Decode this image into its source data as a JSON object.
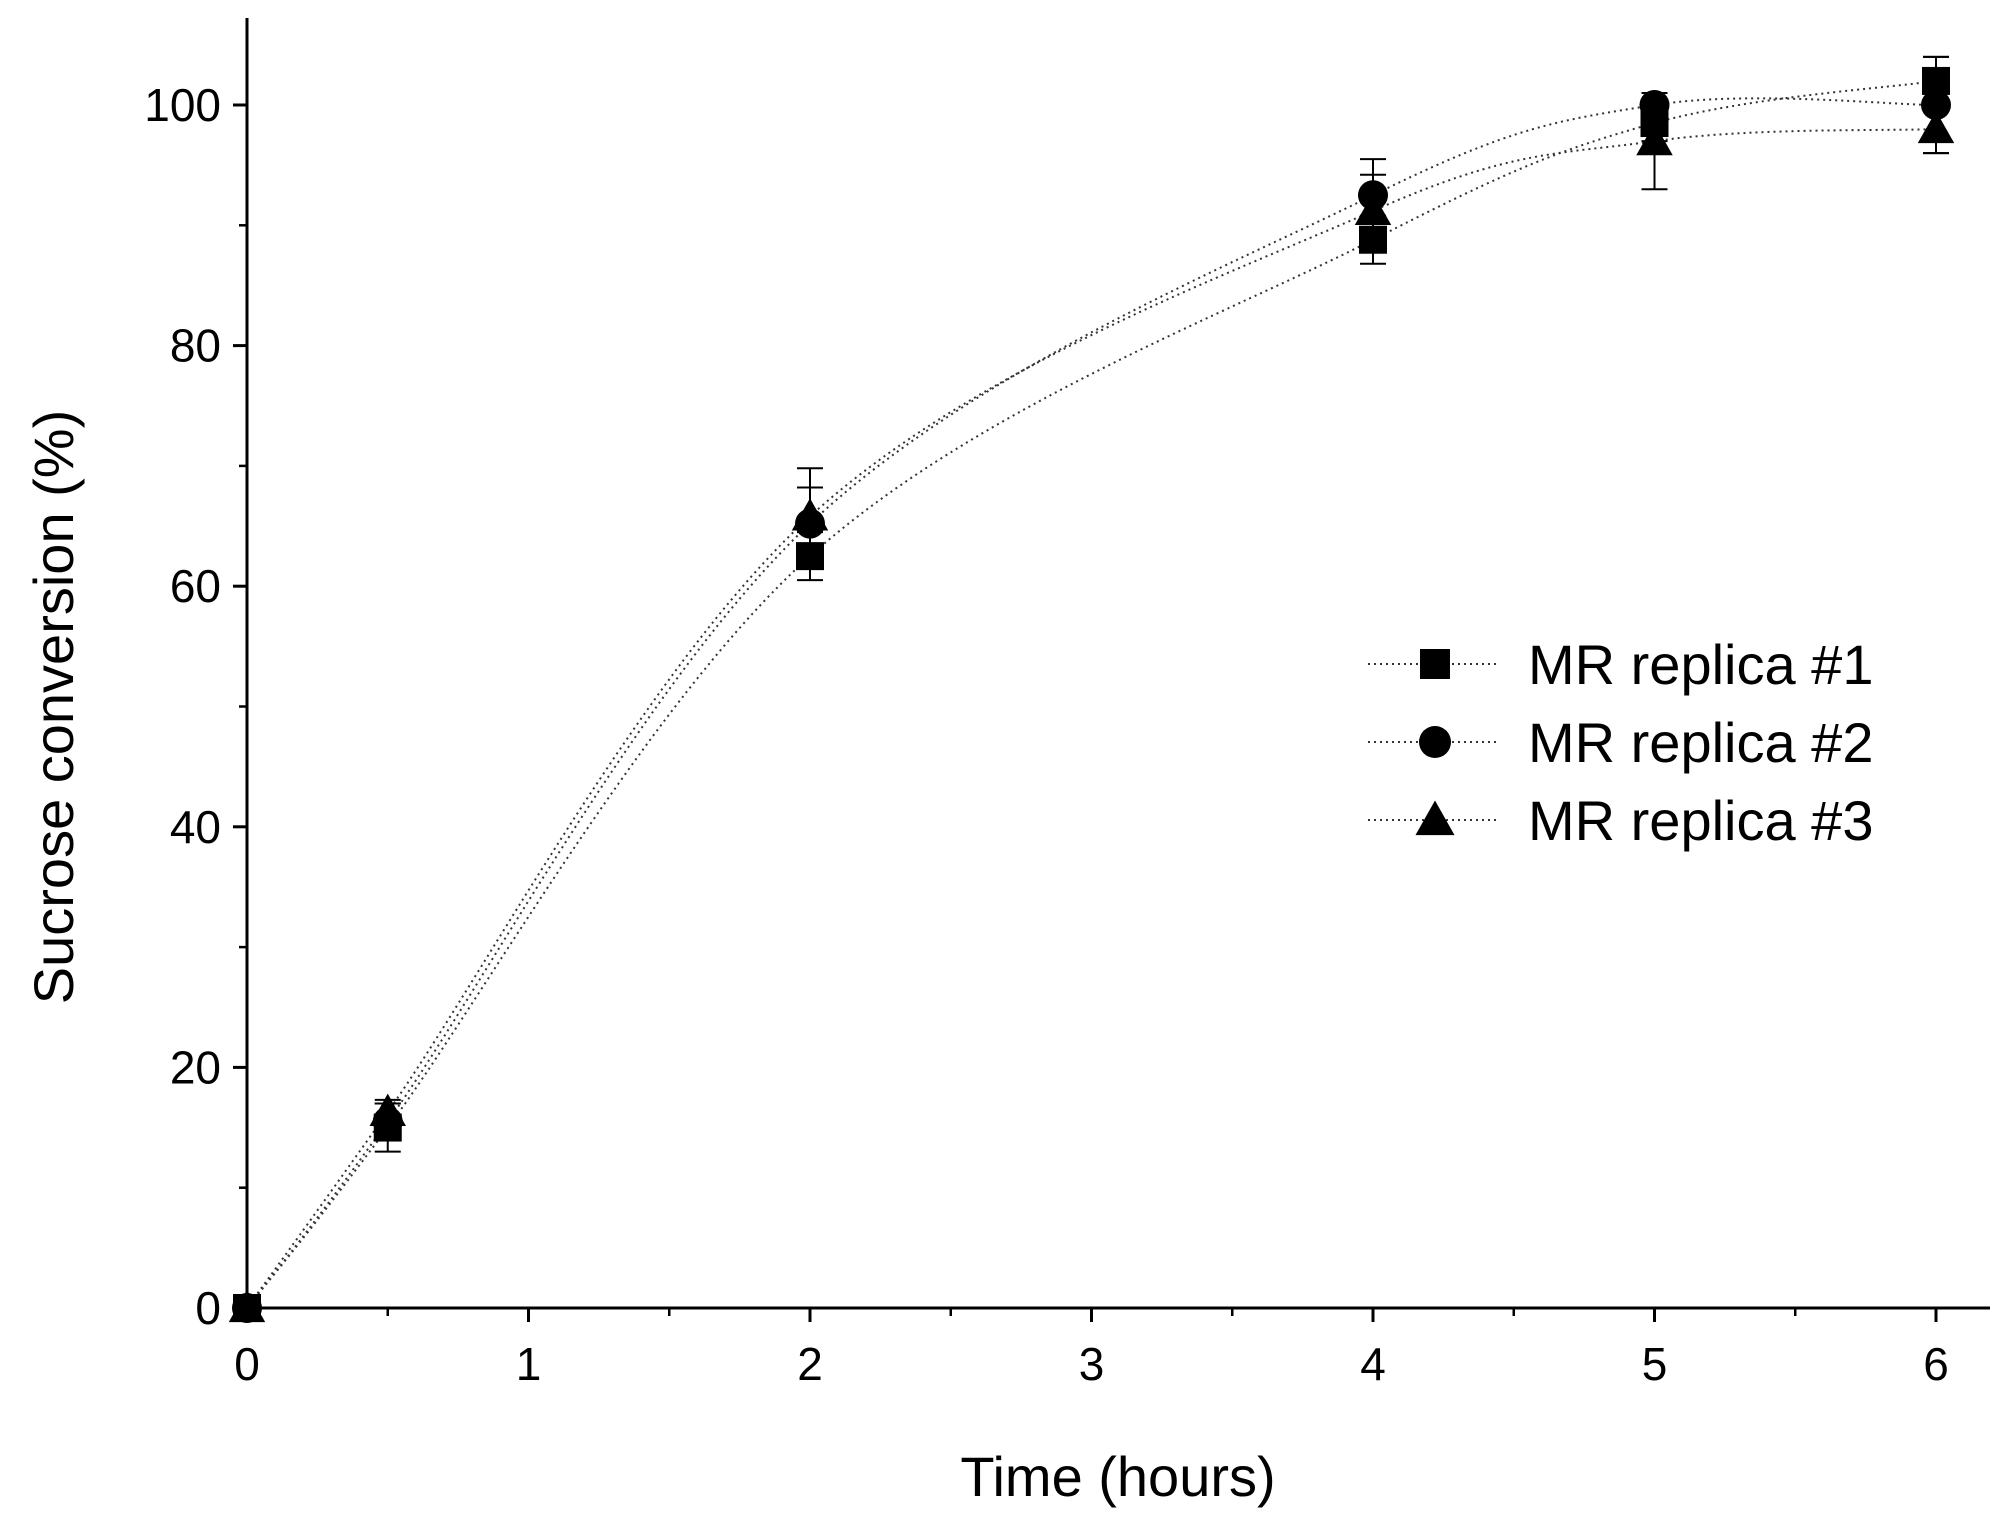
{
  "chart_data": {
    "type": "scatter",
    "title": "",
    "xlabel": "Time (hours)",
    "ylabel": "Sucrose conversion (%)",
    "xlim": [
      0,
      6.2
    ],
    "ylim": [
      0,
      107
    ],
    "x_ticks": [
      0,
      1,
      2,
      3,
      4,
      5,
      6
    ],
    "y_ticks": [
      0,
      20,
      40,
      60,
      80,
      100
    ],
    "x_minor_step": 0.5,
    "y_minor_step": 10,
    "legend_position": "right-middle",
    "line_style": "dotted",
    "marker_color": "#000000",
    "series": [
      {
        "name": "MR replica #1",
        "marker": "square",
        "x": [
          0,
          0.5,
          2,
          4,
          5,
          6
        ],
        "y": [
          0,
          15.0,
          62.5,
          88.8,
          98.5,
          102.0
        ],
        "error": [
          0,
          2.0,
          2.0,
          2.0,
          1.5,
          2.0
        ]
      },
      {
        "name": "MR replica #2",
        "marker": "circle",
        "x": [
          0,
          0.5,
          2,
          4,
          5,
          6
        ],
        "y": [
          0,
          15.5,
          65.2,
          92.5,
          100.0,
          100.0
        ],
        "error": [
          0,
          1.5,
          3.0,
          3.0,
          1.0,
          4.0
        ]
      },
      {
        "name": "MR replica #3",
        "marker": "triangle",
        "x": [
          0,
          0.5,
          2,
          4,
          5,
          6
        ],
        "y": [
          0,
          16.3,
          65.8,
          91.2,
          97.0,
          98.0
        ],
        "error": [
          0,
          1.0,
          4.0,
          3.0,
          4.0,
          2.0
        ]
      }
    ]
  }
}
